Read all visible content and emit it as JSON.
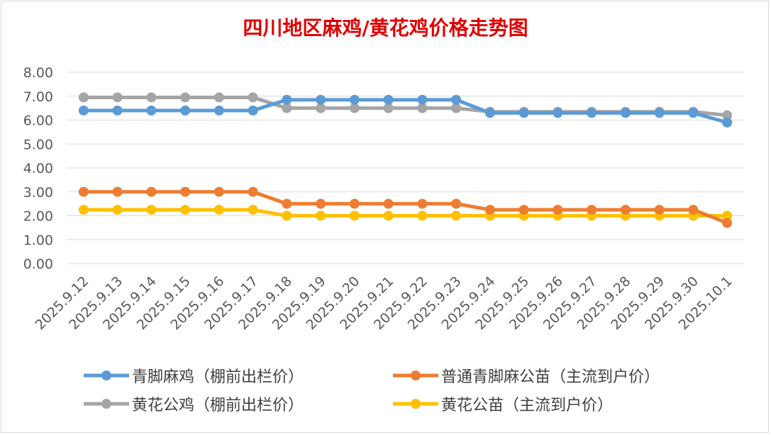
{
  "chart_data": {
    "type": "line",
    "title": "四川地区麻鸡/黄花鸡价格走势图",
    "xlabel": "",
    "ylabel": "",
    "ylim": [
      0,
      8
    ],
    "yticks": [
      "0.00",
      "1.00",
      "2.00",
      "3.00",
      "4.00",
      "5.00",
      "6.00",
      "7.00",
      "8.00"
    ],
    "grid": true,
    "legend_position": "bottom",
    "categories": [
      "2025.9.12",
      "2025.9.13",
      "2025.9.14",
      "2025.9.15",
      "2025.9.16",
      "2025.9.17",
      "2025.9.18",
      "2025.9.19",
      "2025.9.20",
      "2025.9.21",
      "2025.9.22",
      "2025.9.23",
      "2025.9.24",
      "2025.9.25",
      "2025.9.26",
      "2025.9.27",
      "2025.9.28",
      "2025.9.29",
      "2025.9.30",
      "2025.10.1"
    ],
    "series": [
      {
        "name": "青脚麻鸡（棚前出栏价）",
        "color": "#5b9bd5",
        "values": [
          6.4,
          6.4,
          6.4,
          6.4,
          6.4,
          6.4,
          6.85,
          6.85,
          6.85,
          6.85,
          6.85,
          6.85,
          6.3,
          6.3,
          6.3,
          6.3,
          6.3,
          6.3,
          6.3,
          5.9
        ]
      },
      {
        "name": "普通青脚麻公苗（主流到户价）",
        "color": "#ed7d31",
        "values": [
          3.0,
          3.0,
          3.0,
          3.0,
          3.0,
          3.0,
          2.5,
          2.5,
          2.5,
          2.5,
          2.5,
          2.5,
          2.25,
          2.25,
          2.25,
          2.25,
          2.25,
          2.25,
          2.25,
          1.7
        ]
      },
      {
        "name": "黄花公鸡（棚前出栏价）",
        "color": "#a5a5a5",
        "values": [
          6.95,
          6.95,
          6.95,
          6.95,
          6.95,
          6.95,
          6.5,
          6.5,
          6.5,
          6.5,
          6.5,
          6.5,
          6.35,
          6.35,
          6.35,
          6.35,
          6.35,
          6.35,
          6.35,
          6.2
        ]
      },
      {
        "name": "黄花公苗（主流到户价）",
        "color": "#ffc000",
        "values": [
          2.25,
          2.25,
          2.25,
          2.25,
          2.25,
          2.25,
          2.0,
          2.0,
          2.0,
          2.0,
          2.0,
          2.0,
          2.0,
          2.0,
          2.0,
          2.0,
          2.0,
          2.0,
          2.0,
          2.0
        ]
      }
    ]
  }
}
